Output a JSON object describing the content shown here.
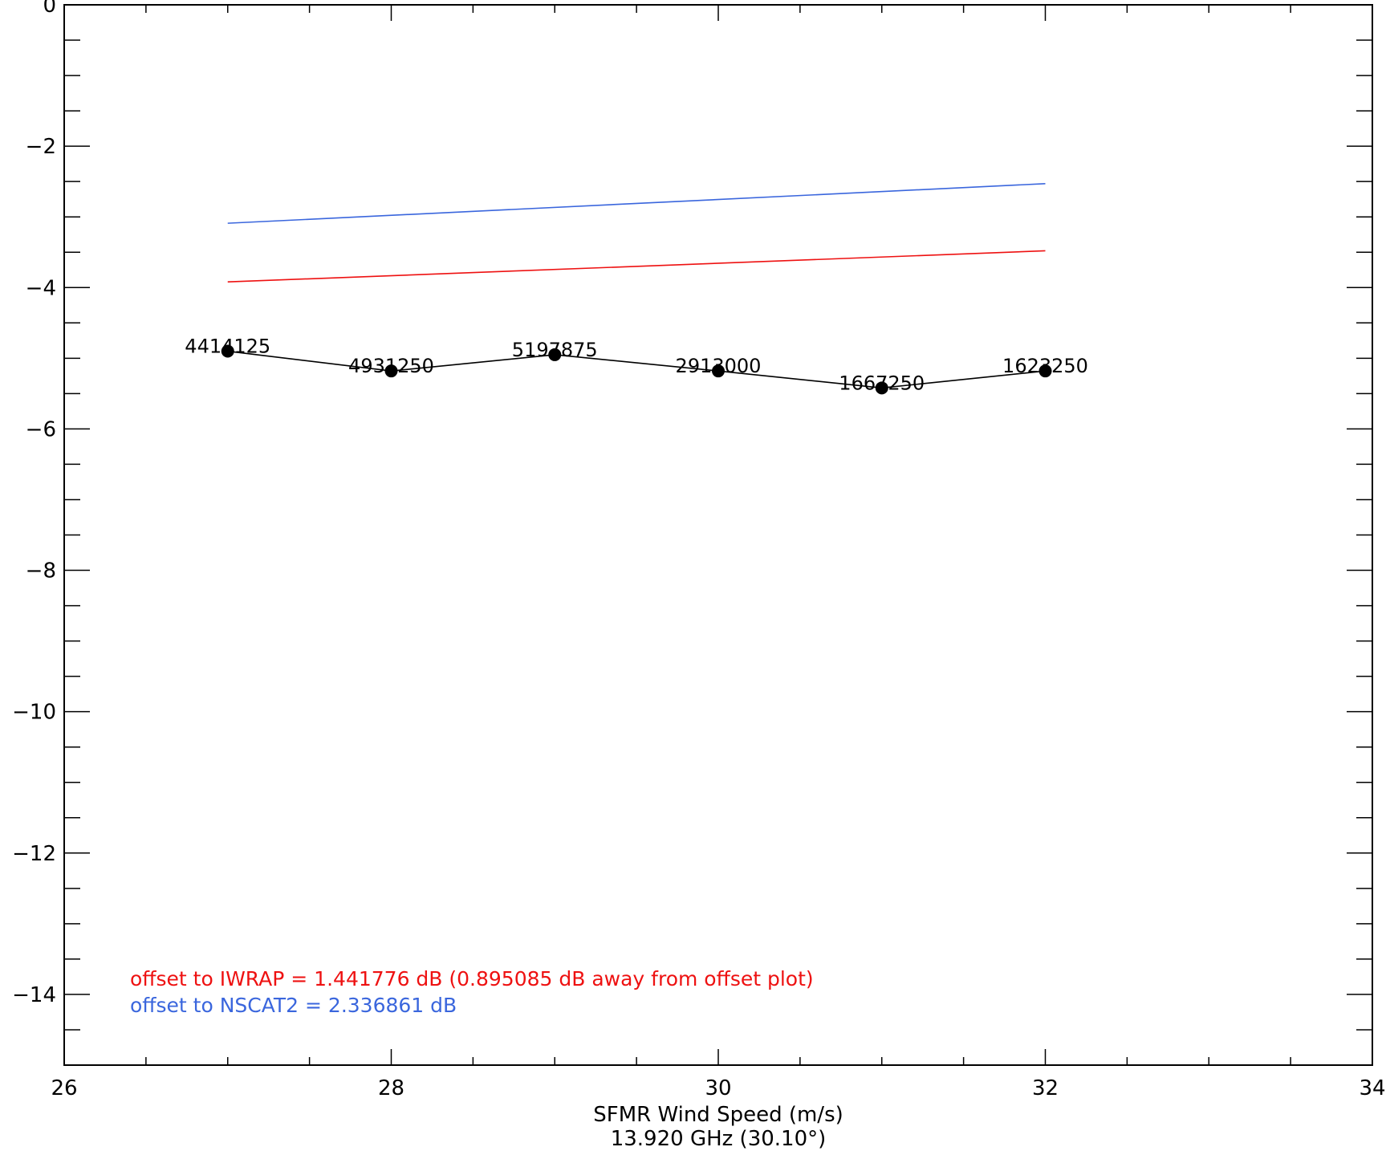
{
  "chart_data": {
    "type": "line",
    "title": "",
    "xlabel": "SFMR Wind Speed (m/s)",
    "xlabel2": "13.920 GHz (30.10°)",
    "ylabel": "",
    "xlim": [
      26,
      34
    ],
    "ylim": [
      -15,
      0
    ],
    "x_ticks": [
      26,
      28,
      30,
      32,
      34
    ],
    "x_tick_labels": [
      "26",
      "28",
      "30",
      "32",
      "34"
    ],
    "y_ticks": [
      0,
      -2,
      -4,
      -6,
      -8,
      -10,
      -12,
      -14
    ],
    "y_tick_labels": [
      "0",
      "−2",
      "−4",
      "−6",
      "−8",
      "−10",
      "−12",
      "−14"
    ],
    "x_minor_step": 0.5,
    "y_minor_step": 0.5,
    "grid": false,
    "series": [
      {
        "color": "#000000",
        "markers": true,
        "x": [
          27,
          28,
          29,
          30,
          31,
          32
        ],
        "y": [
          -4.9,
          -5.18,
          -4.95,
          -5.18,
          -5.42,
          -5.18
        ],
        "point_labels": [
          "4414125",
          "4931250",
          "5197875",
          "2913000",
          "1667250",
          "1623250"
        ]
      },
      {
        "color": "#ee1111",
        "markers": false,
        "x": [
          27,
          32
        ],
        "y": [
          -3.92,
          -3.48
        ]
      },
      {
        "color": "#3a66dd",
        "markers": false,
        "x": [
          27,
          32
        ],
        "y": [
          -3.09,
          -2.53
        ]
      }
    ],
    "annotations": [
      {
        "text": "offset to IWRAP = 1.441776 dB (0.895085 dB away from offset plot)",
        "color": "#ee1111"
      },
      {
        "text": "offset to NSCAT2 = 2.336861 dB",
        "color": "#3a66dd"
      }
    ]
  }
}
